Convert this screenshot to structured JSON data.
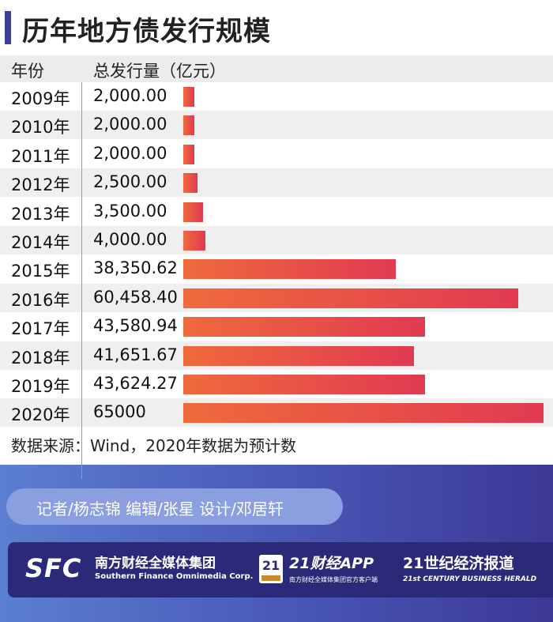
{
  "title": "历年地方债发行规模",
  "header": {
    "year_col": "年份",
    "value_col": "总发行量（亿元）"
  },
  "chart_data": {
    "type": "bar",
    "orientation": "horizontal",
    "title": "历年地方债发行规模",
    "xlabel": "",
    "ylabel": "",
    "categories": [
      "2009年",
      "2010年",
      "2011年",
      "2012年",
      "2013年",
      "2014年",
      "2015年",
      "2016年",
      "2017年",
      "2018年",
      "2019年",
      "2020年"
    ],
    "values": [
      2000,
      2000,
      2000,
      2500,
      3500,
      4000,
      38350.62,
      60458.4,
      43580.94,
      41651.67,
      43624.27,
      65000
    ],
    "value_labels": [
      "2,000.00",
      "2,000.00",
      "2,000.00",
      "2,500.00",
      "3,500.00",
      "4,000.00",
      "38,350.62",
      "60,458.40",
      "43,580.94",
      "41,651.67",
      "43,624.27",
      "65000"
    ],
    "xlim": [
      0,
      65000
    ],
    "grid": false,
    "bar_color_start": "#ef6a3c",
    "bar_color_end": "#e13a52"
  },
  "source": "数据来源：Wind，2020年数据为预计数",
  "credits": "记者/杨志锦  编辑/张星  设计/邓居轩",
  "logos": {
    "sfc_mark": "SFC",
    "sfc_cn": "南方财经全媒体集团",
    "sfc_en": "Southern Finance Omnimedia Corp.",
    "app_badge": "21",
    "app_name": "21财经APP",
    "app_sub": "南方财经全媒体集团官方客户端",
    "herald_cn": "21世纪经济报道",
    "herald_en": "21st CENTURY BUSINESS HERALD"
  },
  "colors": {
    "accent": "#3b3f9a",
    "footer_dark": "#2b2a78"
  }
}
